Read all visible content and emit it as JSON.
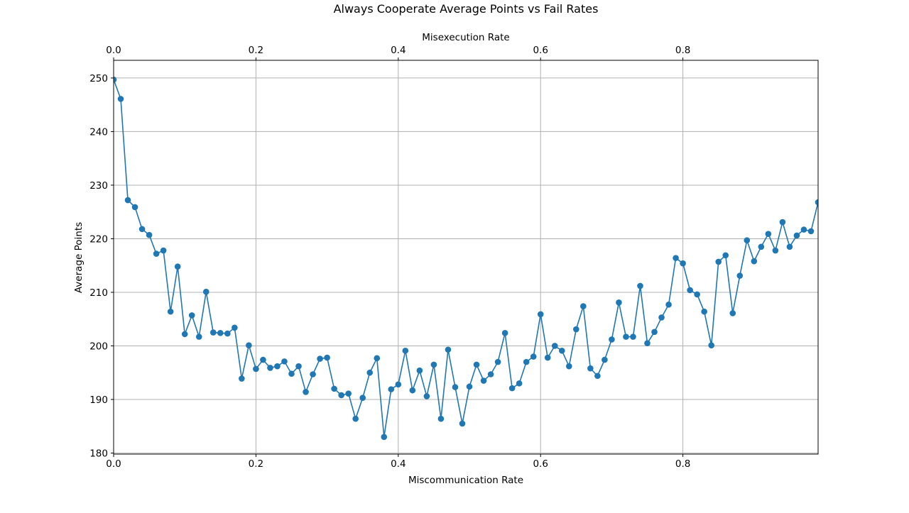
{
  "chart_data": {
    "type": "line",
    "title": "Always Cooperate Average Points vs Fail Rates",
    "xlabel": "Miscommunication Rate",
    "xlabel_top": "Misexecution Rate",
    "ylabel": "Average Points",
    "xlim": [
      0,
      0.99
    ],
    "ylim": [
      179.8,
      253.3
    ],
    "x_ticks": [
      0.0,
      0.2,
      0.4,
      0.6,
      0.8
    ],
    "x_tick_labels": [
      "0.0",
      "0.2",
      "0.4",
      "0.6",
      "0.8"
    ],
    "x_top_ticks": [
      0.0,
      0.2,
      0.4,
      0.6,
      0.8
    ],
    "x_top_tick_labels": [
      "0.0",
      "0.2",
      "0.4",
      "0.6",
      "0.8"
    ],
    "y_ticks": [
      180,
      190,
      200,
      210,
      220,
      230,
      240,
      250
    ],
    "y_tick_labels": [
      "180",
      "190",
      "200",
      "210",
      "220",
      "230",
      "240",
      "250"
    ],
    "grid": true,
    "color": "#1f77b4",
    "marker": "circle",
    "x": [
      0.0,
      0.01,
      0.02,
      0.03,
      0.04,
      0.05,
      0.06,
      0.07,
      0.08,
      0.09,
      0.1,
      0.11,
      0.12,
      0.13,
      0.14,
      0.15,
      0.16,
      0.17,
      0.18,
      0.19,
      0.2,
      0.21,
      0.22,
      0.23,
      0.24,
      0.25,
      0.26,
      0.27,
      0.28,
      0.29,
      0.3,
      0.31,
      0.32,
      0.33,
      0.34,
      0.35,
      0.36,
      0.37,
      0.38,
      0.39,
      0.4,
      0.41,
      0.42,
      0.43,
      0.44,
      0.45,
      0.46,
      0.47,
      0.48,
      0.49,
      0.5,
      0.51,
      0.52,
      0.53,
      0.54,
      0.55,
      0.56,
      0.57,
      0.58,
      0.59,
      0.6,
      0.61,
      0.62,
      0.63,
      0.64,
      0.65,
      0.66,
      0.67,
      0.68,
      0.69,
      0.7,
      0.71,
      0.72,
      0.73,
      0.74,
      0.75,
      0.76,
      0.77,
      0.78,
      0.79,
      0.8,
      0.81,
      0.82,
      0.83,
      0.84,
      0.85,
      0.86,
      0.87,
      0.88,
      0.89,
      0.9,
      0.91,
      0.92,
      0.93,
      0.94,
      0.95,
      0.96,
      0.97,
      0.98,
      0.99
    ],
    "y": [
      249.7,
      246.1,
      227.2,
      225.9,
      221.8,
      220.7,
      217.2,
      217.8,
      206.4,
      214.8,
      202.2,
      205.7,
      201.7,
      210.1,
      202.5,
      202.4,
      202.3,
      203.4,
      193.9,
      200.1,
      195.7,
      197.4,
      195.9,
      196.2,
      197.1,
      194.8,
      196.2,
      191.4,
      194.7,
      197.6,
      197.8,
      192.0,
      190.8,
      191.1,
      186.4,
      190.3,
      195.0,
      197.7,
      183.0,
      191.9,
      192.8,
      199.1,
      191.7,
      195.4,
      190.6,
      196.5,
      186.4,
      199.3,
      192.3,
      185.5,
      192.4,
      196.5,
      193.5,
      194.7,
      197.0,
      202.4,
      192.1,
      193.0,
      197.0,
      198.0,
      205.9,
      197.8,
      200.0,
      199.1,
      196.2,
      203.1,
      207.4,
      195.8,
      194.4,
      197.4,
      201.2,
      208.1,
      201.7,
      201.7,
      211.2,
      200.5,
      202.6,
      205.3,
      207.7,
      216.4,
      215.4,
      210.4,
      209.6,
      206.4,
      200.1,
      215.7,
      216.9,
      206.1,
      213.1,
      219.7,
      215.8,
      218.5,
      220.9,
      217.8,
      223.1,
      218.5,
      220.6,
      221.7,
      221.4,
      226.8
    ]
  }
}
